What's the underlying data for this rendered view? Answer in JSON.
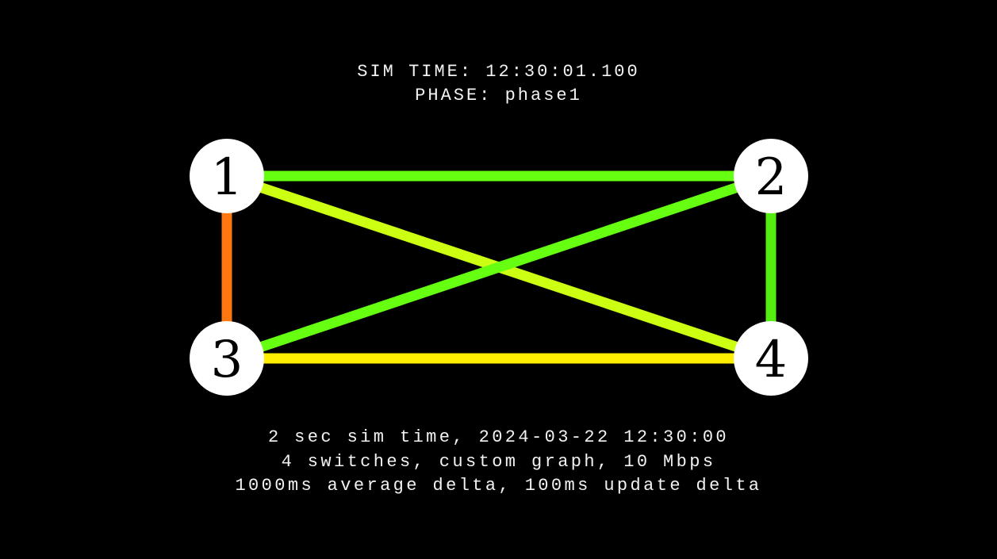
{
  "header": {
    "sim_time": "SIM TIME: 12:30:01.100",
    "phase": "PHASE: phase1"
  },
  "graph": {
    "nodes": [
      {
        "id": "1",
        "label": "1"
      },
      {
        "id": "2",
        "label": "2"
      },
      {
        "id": "3",
        "label": "3"
      },
      {
        "id": "4",
        "label": "4"
      }
    ],
    "links": [
      {
        "from": "1",
        "to": "2",
        "color": "#66ff11"
      },
      {
        "from": "1",
        "to": "4",
        "color": "#ccff11"
      },
      {
        "from": "3",
        "to": "2",
        "color": "#66ff11"
      },
      {
        "from": "1",
        "to": "3",
        "color": "#ff7711"
      },
      {
        "from": "2",
        "to": "4",
        "color": "#55ee11"
      },
      {
        "from": "3",
        "to": "4",
        "color": "#ffee00"
      }
    ],
    "node_fill": "#ffffff"
  },
  "footer": {
    "line1": "2 sec sim time, 2024-03-22 12:30:00",
    "line2": "4 switches, custom graph, 10 Mbps",
    "line3": "1000ms average delta, 100ms update delta"
  }
}
